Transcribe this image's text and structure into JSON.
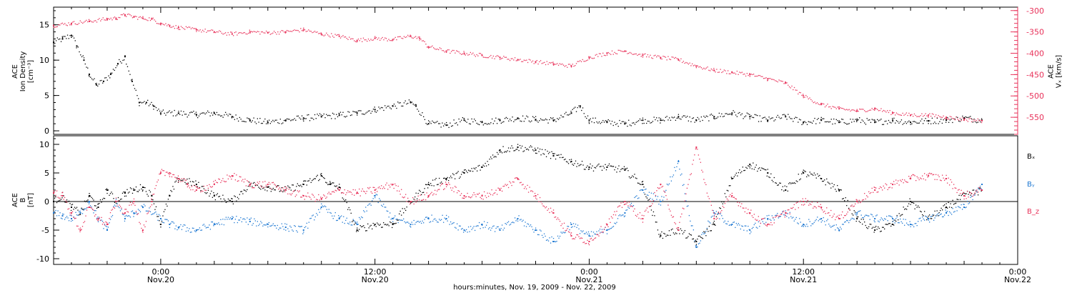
{
  "colors": {
    "black": "#000000",
    "pink": "#e8325a",
    "blue": "#1e78d2"
  },
  "top_panel": {
    "ylabel_lines": [
      "ACE",
      "Ion Density",
      "[cm⁻³]"
    ],
    "ylabel_right_lines": [
      "ACE",
      "Vₓ [km/s]"
    ]
  },
  "bottom_panel": {
    "ylabel_lines": [
      "ACE",
      "B",
      "[nT]"
    ],
    "legend": [
      "Bₓ",
      "Bᵧ",
      "B_z"
    ]
  },
  "x_axis": {
    "title": "hours:minutes, Nov. 19, 2009 - Nov. 22, 2009",
    "ticks": [
      {
        "t": 0,
        "time": "0:00",
        "date": "Nov.20"
      },
      {
        "t": 12,
        "time": "12:00",
        "date": "Nov.20"
      },
      {
        "t": 24,
        "time": "0:00",
        "date": "Nov.21"
      },
      {
        "t": 36,
        "time": "12:00",
        "date": "Nov.21"
      },
      {
        "t": 48,
        "time": "0:00",
        "date": "Nov.22"
      }
    ]
  },
  "chart_data": [
    {
      "type": "scatter",
      "panel": "top",
      "x_unit": "hours from 2009-11-20 00:00 UT",
      "xlim": [
        -6,
        48
      ],
      "series": [
        {
          "name": "Ion Density",
          "axis": "left",
          "color": "#000000",
          "ylim": [
            -0.5,
            17.5
          ],
          "yticks": [
            0,
            5,
            10,
            15
          ],
          "x": [
            -6,
            -5.5,
            -5,
            -4.7,
            -4.3,
            -4,
            -3.6,
            -3.2,
            -2.8,
            -2.4,
            -2,
            -1.6,
            -1.2,
            -0.8,
            -0.4,
            0,
            1,
            2,
            3,
            4,
            5,
            6,
            7,
            8,
            9,
            10,
            11,
            12,
            13,
            14,
            14.3,
            15,
            16,
            17,
            18,
            19,
            20,
            21,
            22,
            23,
            23.5,
            24,
            25,
            26,
            27,
            28,
            29,
            30,
            31,
            32,
            33,
            34,
            35,
            36,
            37,
            38,
            39,
            40,
            41,
            42,
            43,
            44,
            45,
            46
          ],
          "y": [
            12.5,
            13,
            13.5,
            12,
            10,
            8,
            6.5,
            7,
            8,
            9.5,
            10.5,
            7,
            4,
            4,
            3.5,
            2.5,
            2.5,
            2.3,
            2.5,
            2,
            1.5,
            1.2,
            1.5,
            1.8,
            2,
            2.2,
            2.5,
            3,
            3.5,
            4,
            3.5,
            1,
            0.8,
            1.5,
            1.2,
            1.5,
            1.8,
            1.6,
            1.5,
            2.5,
            3.5,
            1.5,
            1.2,
            1,
            1.5,
            1.5,
            2,
            1.5,
            2,
            2.5,
            2,
            1.5,
            2,
            1.2,
            1.5,
            1.2,
            1.5,
            1.2,
            1.5,
            1.2,
            1.4,
            1.5,
            1.8,
            1.5
          ]
        },
        {
          "name": "Vx",
          "axis": "right",
          "color": "#e8325a",
          "ylim": [
            -590,
            -292
          ],
          "yticks": [
            -300,
            -350,
            -400,
            -450,
            -500,
            -550
          ],
          "x": [
            -6,
            -5,
            -4,
            -3,
            -2.5,
            -2,
            -1.5,
            -1,
            -0.5,
            0,
            0.5,
            1,
            2,
            3,
            4,
            5,
            6,
            7,
            8,
            9,
            10,
            11,
            12,
            13,
            14,
            14.5,
            15,
            16,
            17,
            18,
            19,
            20,
            21,
            22,
            23,
            24,
            25,
            26,
            27,
            28,
            29,
            30,
            31,
            32,
            33,
            34,
            35,
            36,
            37,
            38,
            39,
            40,
            41,
            42,
            43,
            44,
            45,
            46
          ],
          "y": [
            -335,
            -330,
            -325,
            -320,
            -318,
            -310,
            -315,
            -318,
            -320,
            -330,
            -335,
            -340,
            -345,
            -350,
            -355,
            -350,
            -352,
            -350,
            -345,
            -355,
            -360,
            -370,
            -365,
            -368,
            -360,
            -365,
            -385,
            -395,
            -400,
            -405,
            -410,
            -415,
            -420,
            -425,
            -430,
            -410,
            -400,
            -395,
            -405,
            -410,
            -415,
            -430,
            -440,
            -445,
            -450,
            -460,
            -470,
            -500,
            -520,
            -530,
            -535,
            -530,
            -540,
            -545,
            -545,
            -550,
            -555,
            -558
          ]
        }
      ]
    },
    {
      "type": "scatter",
      "panel": "bottom",
      "x_unit": "hours from 2009-11-20 00:00 UT",
      "xlim": [
        -6,
        48
      ],
      "ylim": [
        -11,
        11.5
      ],
      "yticks": [
        -10,
        -5,
        0,
        5,
        10
      ],
      "zero_line": true,
      "series": [
        {
          "name": "Bₓ",
          "color": "#000000",
          "x": [
            -6,
            -5.5,
            -5,
            -4.5,
            -4,
            -3.5,
            -3,
            -2.5,
            -2,
            -1.5,
            -1,
            -0.5,
            0,
            0.5,
            1,
            2,
            3,
            4,
            5,
            6,
            7,
            8,
            9,
            9.5,
            10,
            11,
            12,
            13,
            14,
            15,
            16,
            17,
            18,
            19,
            20,
            21,
            22,
            23,
            24,
            25,
            26,
            27,
            28,
            29,
            30,
            31,
            32,
            33,
            34,
            35,
            36,
            37,
            38,
            39,
            40,
            41,
            42,
            43,
            44,
            45,
            46
          ],
          "y": [
            0,
            1,
            -1,
            -2,
            1,
            -1,
            2,
            0,
            1.5,
            2,
            2.5,
            1,
            -4,
            1,
            4,
            3,
            1,
            0,
            3,
            2.5,
            2,
            3,
            4.5,
            3,
            2.5,
            -5,
            -4,
            -4,
            0,
            3,
            4,
            5,
            6,
            9,
            9.5,
            9,
            8,
            7,
            6,
            6,
            5.5,
            3,
            -6,
            -5,
            -7,
            -4,
            4,
            6.5,
            5,
            2,
            5,
            4,
            2,
            -3,
            -5,
            -4,
            0,
            -3,
            -1,
            1,
            2
          ]
        },
        {
          "name": "Bᵧ",
          "color": "#1e78d2",
          "x": [
            -6,
            -5.5,
            -5,
            -4.5,
            -4,
            -3.5,
            -3,
            -2.5,
            -2,
            -1.5,
            -1,
            0,
            0.5,
            1,
            2,
            3,
            4,
            5,
            6,
            7,
            8,
            9,
            10,
            11,
            12,
            13,
            14,
            15,
            16,
            17,
            18,
            19,
            20,
            21,
            22,
            23,
            24,
            25,
            26,
            27,
            28,
            29,
            30,
            31,
            32,
            33,
            34,
            35,
            36,
            37,
            38,
            39,
            40,
            41,
            42,
            43,
            44,
            45,
            46
          ],
          "y": [
            -2,
            -2.5,
            -3,
            -2,
            0,
            -3,
            -5,
            0,
            -3,
            -2,
            -1,
            -3,
            -4,
            -4.5,
            -5,
            -4,
            -3,
            -3.5,
            -4,
            -4.5,
            -5,
            -1,
            -3,
            -4,
            1,
            -3,
            -4,
            -3,
            -3,
            -5,
            -4,
            -5,
            -3,
            -5,
            -7,
            -4,
            -6,
            -5,
            -2,
            2,
            0,
            7,
            -8,
            -2,
            -4,
            -5,
            -3,
            -2,
            -4,
            -3,
            -5,
            -2,
            -3,
            -3,
            -4,
            -3,
            -2,
            -1,
            3
          ]
        },
        {
          "name": "B_z",
          "color": "#e8325a",
          "x": [
            -6,
            -5.5,
            -5,
            -4.5,
            -4,
            -3.5,
            -3,
            -2.5,
            -2,
            -1.5,
            -1,
            -0.5,
            0,
            0.5,
            1,
            1.5,
            2,
            3,
            4,
            5,
            6,
            7,
            8,
            9,
            10,
            11,
            12,
            13,
            14,
            15,
            16,
            17,
            18,
            19,
            20,
            21,
            22,
            23,
            24,
            25,
            26,
            27,
            28,
            29,
            30,
            31,
            32,
            33,
            34,
            35,
            36,
            37,
            38,
            39,
            40,
            41,
            42,
            43,
            44,
            45,
            46
          ],
          "y": [
            1.5,
            1,
            -2,
            -5,
            -1,
            -3,
            -4,
            0,
            -2,
            0,
            -5,
            0,
            5,
            5,
            4,
            3,
            2,
            3,
            4.5,
            3,
            3,
            2,
            1,
            0.5,
            2,
            1.5,
            2,
            3,
            0,
            1,
            3,
            1,
            1,
            2,
            4,
            1,
            -2,
            -6,
            -7,
            -4,
            0,
            -3,
            3,
            -5,
            9.5,
            -3,
            1,
            -2,
            -4,
            -2,
            0,
            -1,
            -3,
            0,
            2,
            3,
            4,
            4.5,
            4,
            1,
            2
          ]
        }
      ]
    }
  ]
}
